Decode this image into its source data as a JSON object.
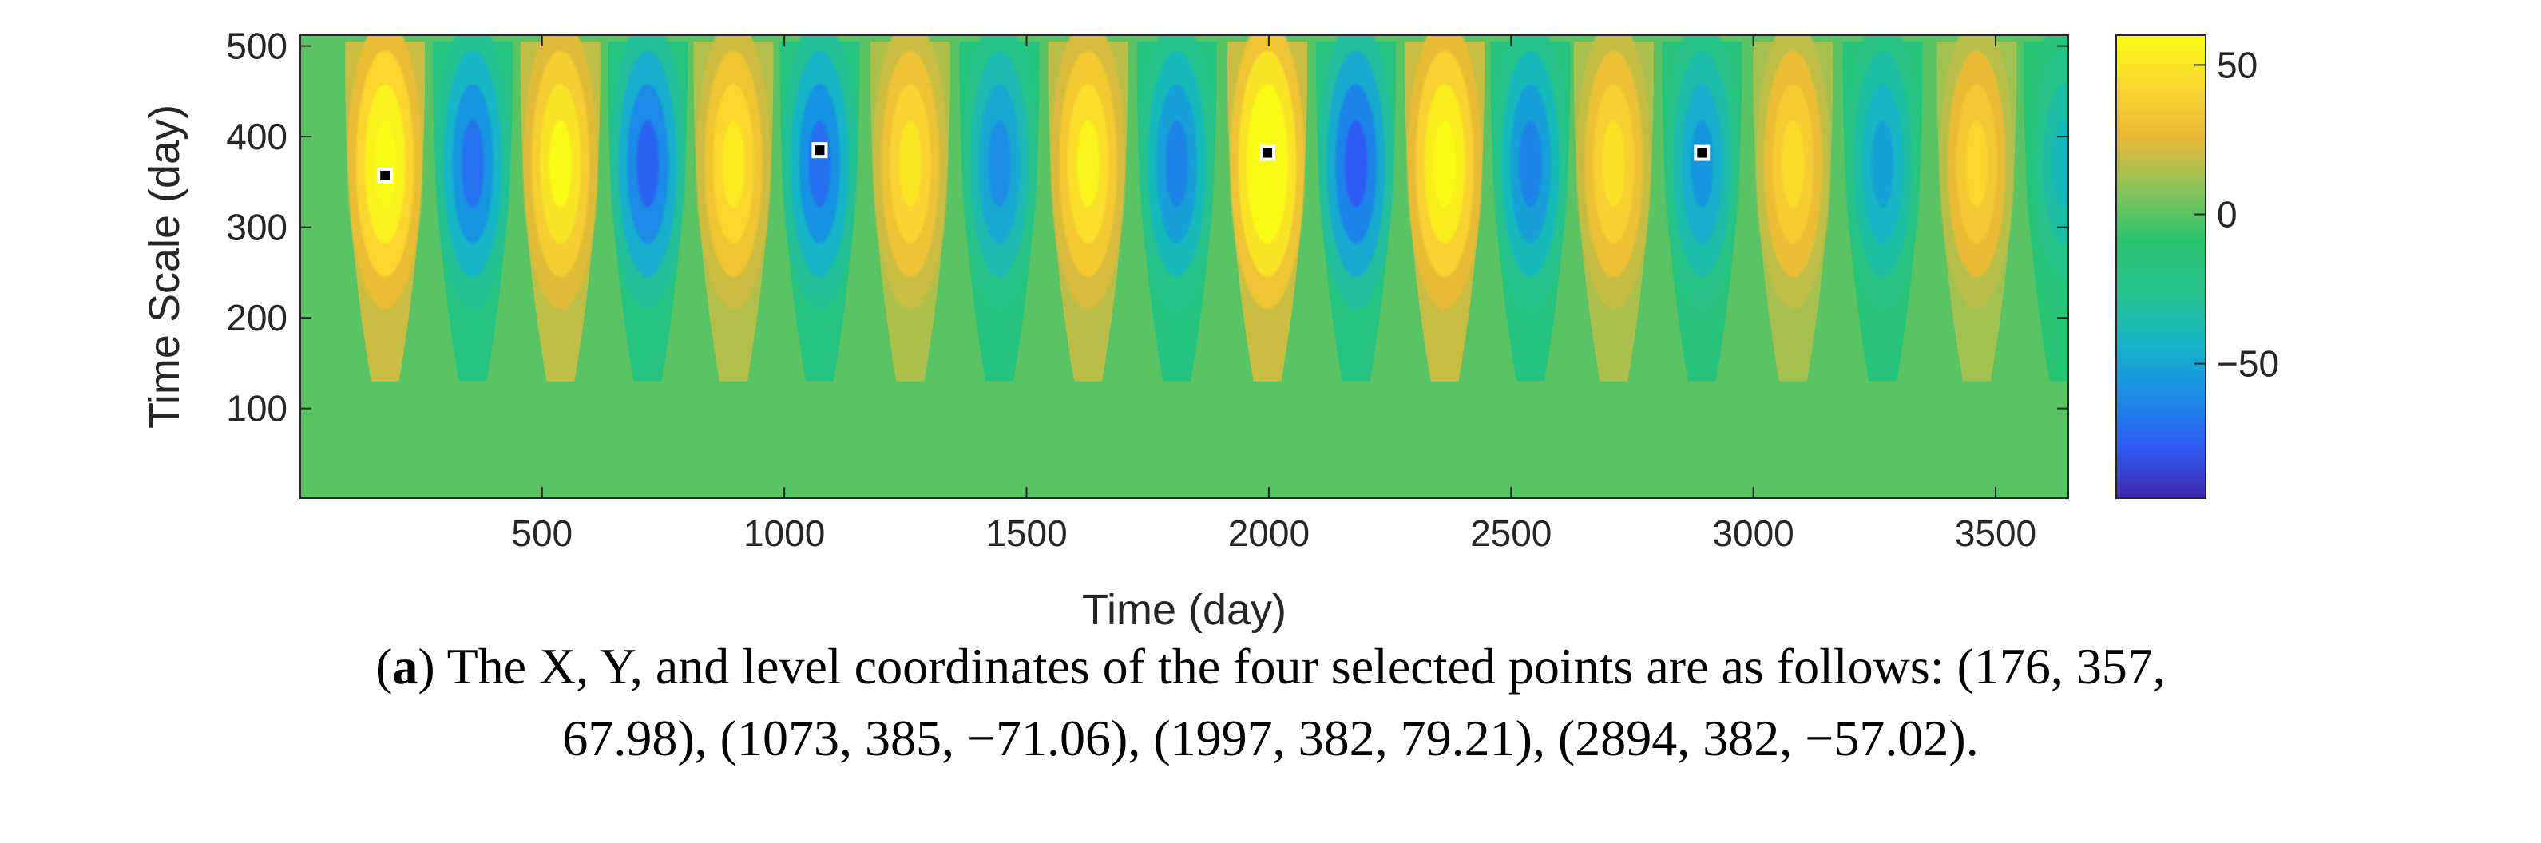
{
  "chart_data": {
    "type": "heatmap",
    "subtype": "wavelet-coefficient-contour",
    "xlabel": "Time (day)",
    "ylabel": "Time Scale (day)",
    "xlim": [
      1,
      3650
    ],
    "ylim": [
      1,
      512
    ],
    "xticks": [
      500,
      1000,
      1500,
      2000,
      2500,
      3000,
      3500
    ],
    "yticks": [
      100,
      200,
      300,
      400,
      500
    ],
    "colorbar": {
      "range": [
        -95,
        60
      ],
      "ticks": [
        50,
        0,
        -50
      ],
      "tick_labels": [
        "50",
        "0",
        "−50"
      ],
      "colormap": "parula",
      "stops": [
        "#3e26a8",
        "#2f5bf5",
        "#1a8de6",
        "#13b6c6",
        "#26c28c",
        "#27c46e",
        "#8ac35a",
        "#e8ba36",
        "#fbd72f",
        "#f9fb15"
      ]
    },
    "background_level": 0,
    "oscillation": {
      "period_days": 365.25,
      "peak_scale_days": 370,
      "cells": [
        {
          "x": 176,
          "level": 68
        },
        {
          "x": 357,
          "level": -70
        },
        {
          "x": 538,
          "level": 60
        },
        {
          "x": 718,
          "level": -75
        },
        {
          "x": 895,
          "level": 52
        },
        {
          "x": 1073,
          "level": -71
        },
        {
          "x": 1260,
          "level": 50
        },
        {
          "x": 1444,
          "level": -60
        },
        {
          "x": 1627,
          "level": 57
        },
        {
          "x": 1810,
          "level": -64
        },
        {
          "x": 1997,
          "level": 79
        },
        {
          "x": 2180,
          "level": -78
        },
        {
          "x": 2363,
          "level": 65
        },
        {
          "x": 2540,
          "level": -64
        },
        {
          "x": 2712,
          "level": 48
        },
        {
          "x": 2894,
          "level": -57
        },
        {
          "x": 3082,
          "level": 45
        },
        {
          "x": 3267,
          "level": -52
        },
        {
          "x": 3461,
          "level": 42
        },
        {
          "x": 3640,
          "level": -40
        }
      ]
    },
    "selected_points": [
      {
        "x": 176,
        "y": 357,
        "level": 67.98
      },
      {
        "x": 1073,
        "y": 385,
        "level": -71.06
      },
      {
        "x": 1997,
        "y": 382,
        "level": 79.21
      },
      {
        "x": 2894,
        "y": 382,
        "level": -57.02
      }
    ]
  },
  "caption": {
    "label": "a",
    "text_line1": ") The X, Y, and level coordinates of the four selected points are as follows: (176, 357,",
    "text_line2": "67.98), (1073, 385, −71.06), (1997, 382, 79.21), (2894, 382, −57.02)."
  }
}
